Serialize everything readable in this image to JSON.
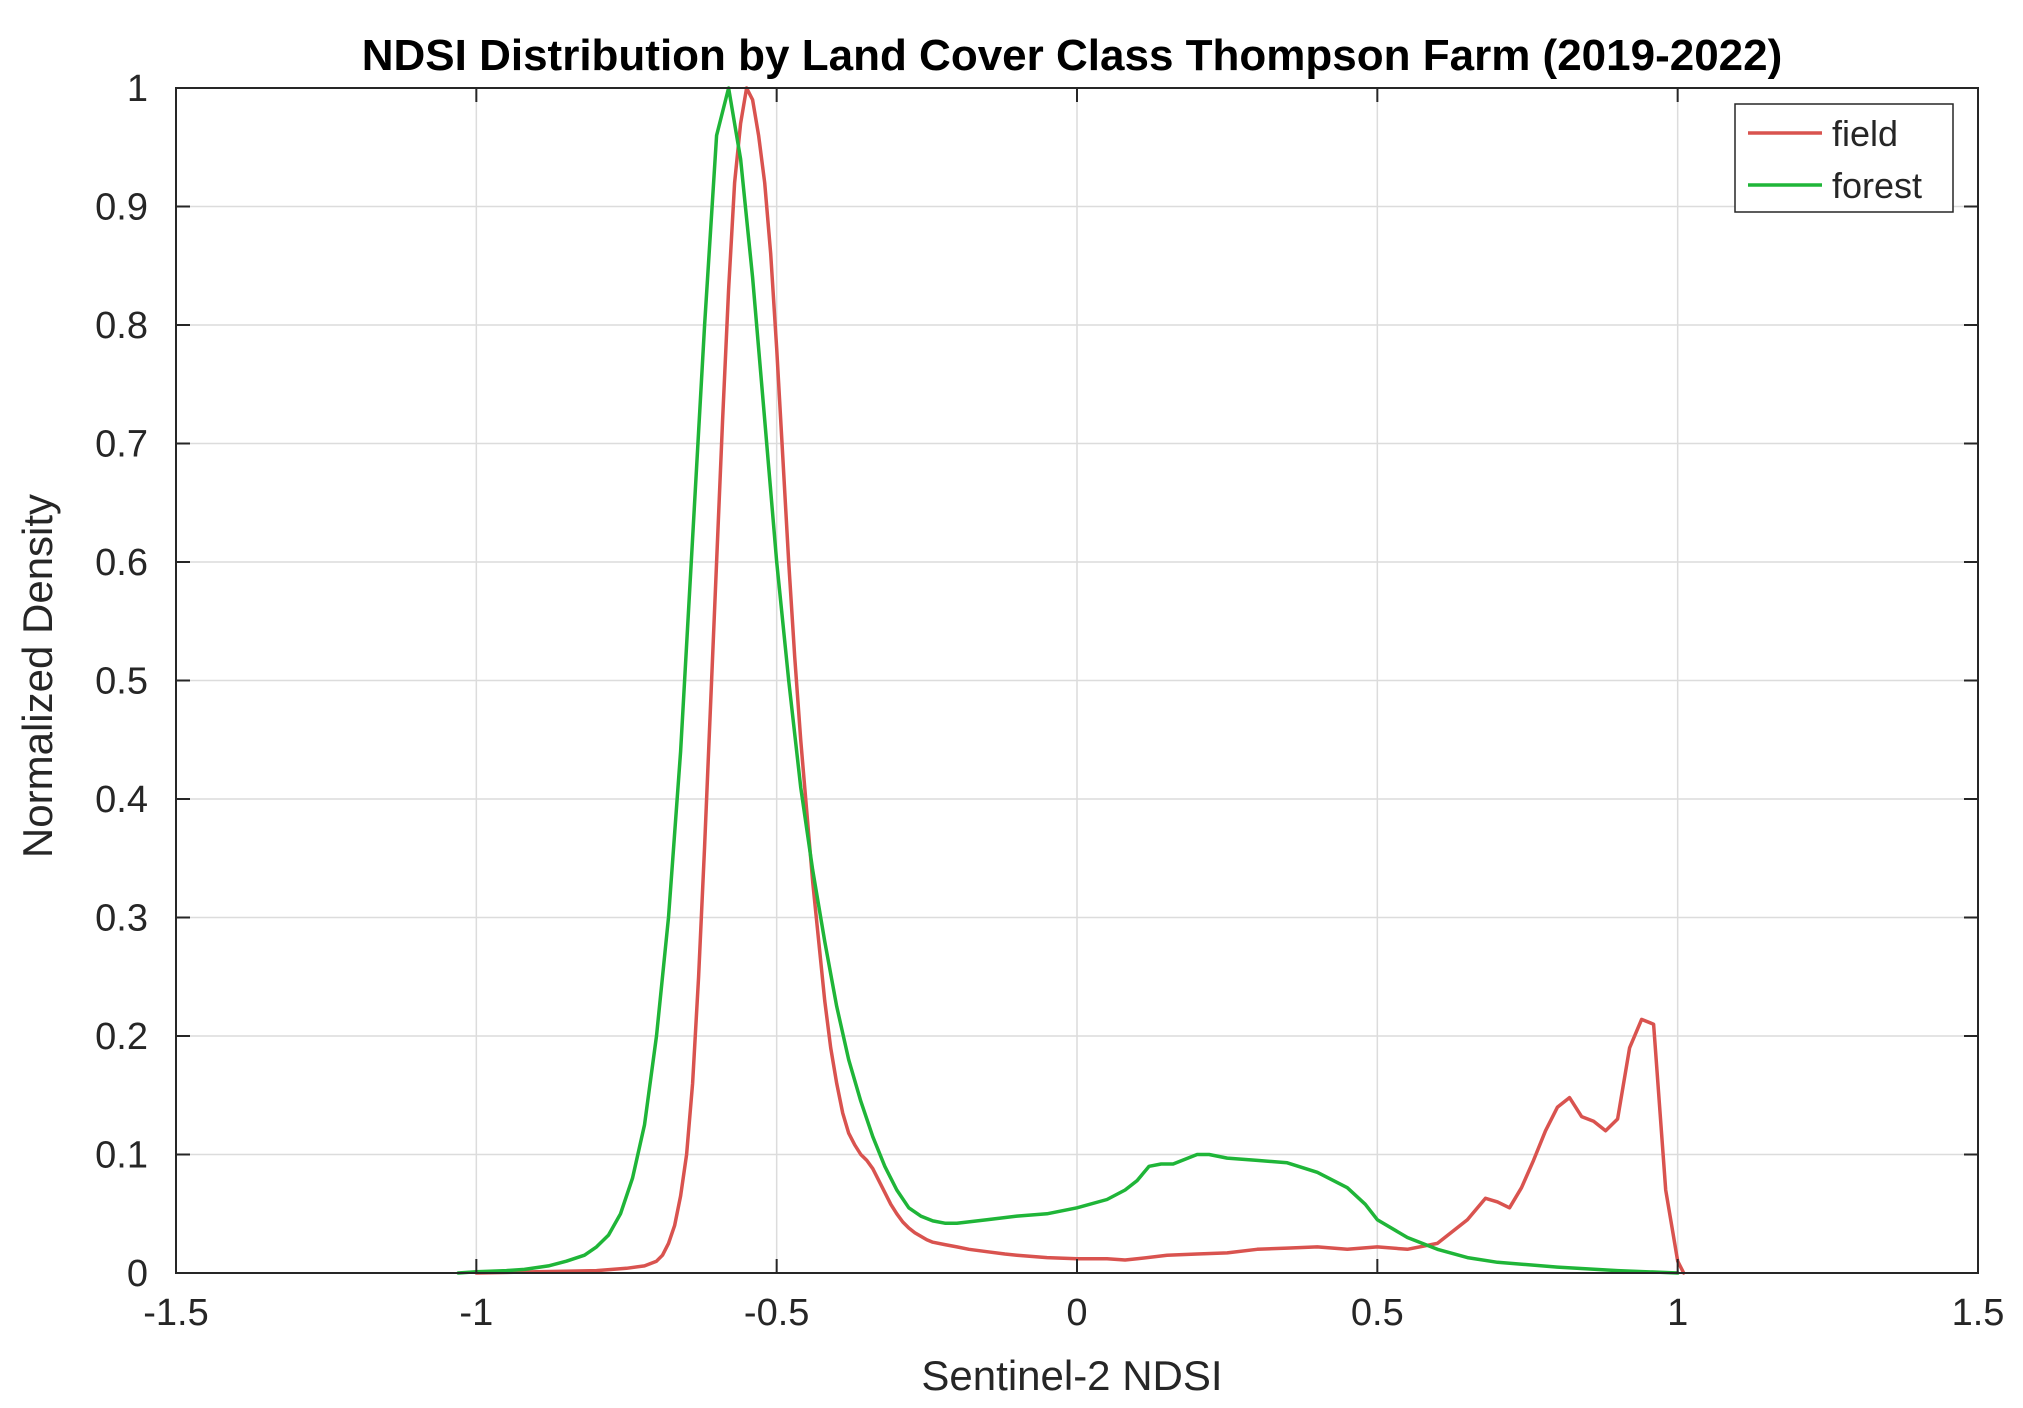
{
  "chart_data": {
    "type": "line",
    "title": "NDSI Distribution by Land Cover Class Thompson Farm (2019-2022)",
    "xlabel": "Sentinel-2 NDSI",
    "ylabel": "Normalized Density",
    "xlim": [
      -1.5,
      1.5
    ],
    "ylim": [
      0,
      1
    ],
    "xticks": [
      -1.5,
      -1,
      -0.5,
      0,
      0.5,
      1,
      1.5
    ],
    "xtick_labels": [
      "-1.5",
      "-1",
      "-0.5",
      "0",
      "0.5",
      "1",
      "1.5"
    ],
    "yticks": [
      0,
      0.1,
      0.2,
      0.3,
      0.4,
      0.5,
      0.6,
      0.7,
      0.8,
      0.9,
      1
    ],
    "ytick_labels": [
      "0",
      "0.1",
      "0.2",
      "0.3",
      "0.4",
      "0.5",
      "0.6",
      "0.7",
      "0.8",
      "0.9",
      "1"
    ],
    "grid": true,
    "legend_position": "top-right",
    "series": [
      {
        "name": "field",
        "color": "#d9534f",
        "x": [
          -1.0,
          -0.9,
          -0.8,
          -0.75,
          -0.72,
          -0.7,
          -0.69,
          -0.68,
          -0.67,
          -0.66,
          -0.65,
          -0.64,
          -0.63,
          -0.62,
          -0.61,
          -0.6,
          -0.59,
          -0.58,
          -0.57,
          -0.56,
          -0.55,
          -0.54,
          -0.53,
          -0.52,
          -0.51,
          -0.5,
          -0.49,
          -0.48,
          -0.47,
          -0.46,
          -0.45,
          -0.44,
          -0.43,
          -0.42,
          -0.41,
          -0.4,
          -0.39,
          -0.38,
          -0.37,
          -0.36,
          -0.35,
          -0.34,
          -0.33,
          -0.32,
          -0.31,
          -0.3,
          -0.29,
          -0.28,
          -0.27,
          -0.26,
          -0.25,
          -0.24,
          -0.22,
          -0.2,
          -0.18,
          -0.15,
          -0.12,
          -0.1,
          -0.05,
          0,
          0.05,
          0.08,
          0.1,
          0.15,
          0.2,
          0.25,
          0.3,
          0.35,
          0.4,
          0.45,
          0.5,
          0.55,
          0.6,
          0.65,
          0.68,
          0.7,
          0.72,
          0.74,
          0.76,
          0.78,
          0.8,
          0.82,
          0.84,
          0.86,
          0.88,
          0.9,
          0.92,
          0.94,
          0.96,
          0.98,
          1.0,
          1.01
        ],
        "values": [
          0.0,
          0.001,
          0.002,
          0.004,
          0.006,
          0.01,
          0.015,
          0.025,
          0.04,
          0.065,
          0.1,
          0.16,
          0.25,
          0.36,
          0.48,
          0.6,
          0.72,
          0.83,
          0.92,
          0.97,
          1.0,
          0.99,
          0.96,
          0.92,
          0.86,
          0.78,
          0.69,
          0.6,
          0.52,
          0.45,
          0.39,
          0.33,
          0.28,
          0.23,
          0.19,
          0.16,
          0.135,
          0.118,
          0.108,
          0.1,
          0.095,
          0.088,
          0.078,
          0.068,
          0.058,
          0.05,
          0.043,
          0.038,
          0.034,
          0.031,
          0.028,
          0.026,
          0.024,
          0.022,
          0.02,
          0.018,
          0.016,
          0.015,
          0.013,
          0.012,
          0.012,
          0.011,
          0.012,
          0.015,
          0.016,
          0.017,
          0.02,
          0.021,
          0.022,
          0.02,
          0.022,
          0.02,
          0.025,
          0.045,
          0.063,
          0.06,
          0.055,
          0.072,
          0.095,
          0.12,
          0.14,
          0.148,
          0.132,
          0.128,
          0.12,
          0.13,
          0.19,
          0.214,
          0.21,
          0.07,
          0.01,
          0.0
        ]
      },
      {
        "name": "forest",
        "color": "#1fb538",
        "x": [
          -1.03,
          -1.0,
          -0.95,
          -0.92,
          -0.88,
          -0.85,
          -0.82,
          -0.8,
          -0.78,
          -0.76,
          -0.74,
          -0.72,
          -0.7,
          -0.68,
          -0.66,
          -0.64,
          -0.62,
          -0.6,
          -0.58,
          -0.56,
          -0.54,
          -0.52,
          -0.5,
          -0.48,
          -0.46,
          -0.44,
          -0.42,
          -0.4,
          -0.38,
          -0.36,
          -0.34,
          -0.32,
          -0.3,
          -0.28,
          -0.26,
          -0.24,
          -0.22,
          -0.2,
          -0.15,
          -0.1,
          -0.05,
          0.0,
          0.05,
          0.08,
          0.1,
          0.12,
          0.14,
          0.16,
          0.18,
          0.2,
          0.22,
          0.25,
          0.3,
          0.35,
          0.4,
          0.45,
          0.48,
          0.5,
          0.55,
          0.6,
          0.65,
          0.7,
          0.8,
          0.9,
          1.0
        ],
        "values": [
          0.0,
          0.001,
          0.002,
          0.003,
          0.006,
          0.01,
          0.015,
          0.022,
          0.032,
          0.05,
          0.08,
          0.125,
          0.2,
          0.3,
          0.44,
          0.62,
          0.8,
          0.96,
          1.0,
          0.94,
          0.84,
          0.72,
          0.6,
          0.5,
          0.41,
          0.34,
          0.28,
          0.225,
          0.18,
          0.145,
          0.115,
          0.09,
          0.07,
          0.055,
          0.048,
          0.044,
          0.042,
          0.042,
          0.045,
          0.048,
          0.05,
          0.055,
          0.062,
          0.07,
          0.078,
          0.09,
          0.092,
          0.092,
          0.096,
          0.1,
          0.1,
          0.097,
          0.095,
          0.093,
          0.085,
          0.072,
          0.058,
          0.045,
          0.03,
          0.02,
          0.013,
          0.009,
          0.005,
          0.002,
          0.0
        ]
      }
    ]
  }
}
